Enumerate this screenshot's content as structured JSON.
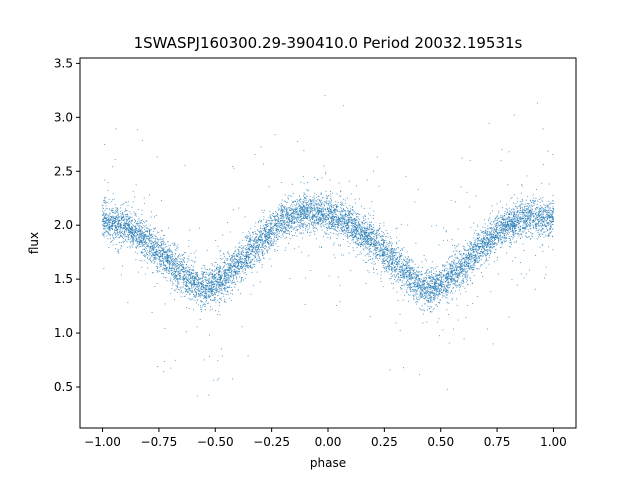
{
  "chart_data": {
    "type": "scatter",
    "title": "1SWASPJ160300.29-390410.0 Period 20032.19531s",
    "xlabel": "phase",
    "ylabel": "flux",
    "xlim": [
      -1.1,
      1.1
    ],
    "ylim": [
      0.12,
      3.55
    ],
    "xticks": [
      -1.0,
      -0.75,
      -0.5,
      -0.25,
      0.0,
      0.25,
      0.5,
      0.75,
      1.0
    ],
    "xtick_labels": [
      "−1.00",
      "−0.75",
      "−0.50",
      "−0.25",
      "0.00",
      "0.25",
      "0.50",
      "0.75",
      "1.00"
    ],
    "yticks": [
      0.5,
      1.0,
      1.5,
      2.0,
      2.5,
      3.0,
      3.5
    ],
    "ytick_labels": [
      "0.5",
      "1.0",
      "1.5",
      "2.0",
      "2.5",
      "3.0",
      "3.5"
    ],
    "grid": false,
    "point_color": "#1f77b4",
    "series": [
      {
        "x": [
          -1.0,
          -0.9,
          -0.8,
          -0.7,
          -0.6,
          -0.55,
          -0.5,
          -0.4,
          -0.3,
          -0.2,
          -0.1,
          0.0,
          0.1,
          0.2,
          0.3,
          0.4,
          0.45,
          0.5,
          0.6,
          0.7,
          0.8,
          0.9,
          1.0
        ],
        "y": [
          2.05,
          2.0,
          1.85,
          1.65,
          1.47,
          1.42,
          1.45,
          1.62,
          1.85,
          2.05,
          2.12,
          2.1,
          2.0,
          1.85,
          1.65,
          1.45,
          1.4,
          1.45,
          1.62,
          1.85,
          2.02,
          2.08,
          2.07
        ]
      }
    ]
  }
}
